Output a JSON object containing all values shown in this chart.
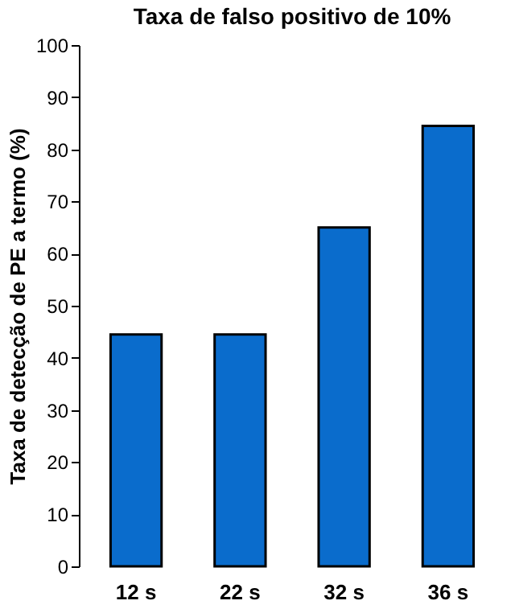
{
  "chart_data": {
    "type": "bar",
    "title": "Taxa de falso positivo de 10%",
    "ylabel": "Taxa de detecção de PE a termo (%)",
    "categories": [
      "12 s",
      "22 s",
      "32 s",
      "36 s"
    ],
    "values": [
      44.5,
      44.5,
      65,
      84.5
    ],
    "color": "#0a6ccc",
    "ylim": [
      0,
      100
    ],
    "yticks": [
      0,
      10,
      20,
      30,
      40,
      50,
      60,
      70,
      80,
      90,
      100
    ],
    "grid": false
  }
}
